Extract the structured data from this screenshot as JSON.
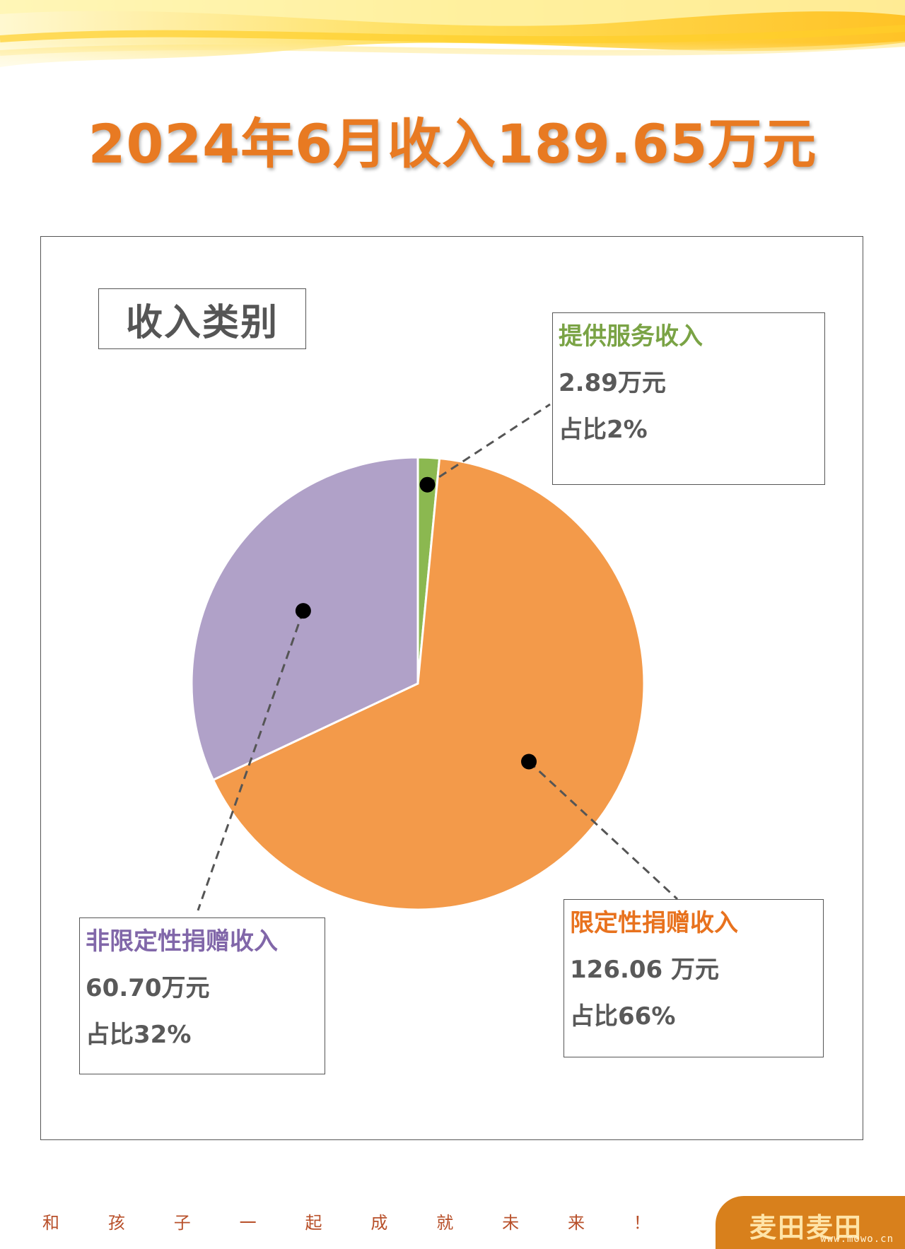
{
  "title": "2024年6月收入189.65万元",
  "category_label": "收入类别",
  "colors": {
    "title": "#e87a22",
    "service": "#8bb850",
    "restricted": "#f39a4a",
    "unrestricted": "#b0a1c8"
  },
  "chart_data": {
    "type": "pie",
    "title": "2024年6月收入189.65万元",
    "slices": [
      {
        "name": "提供服务收入",
        "value": 2.89,
        "amount_label": "2.89万元",
        "share_label": "占比2%"
      },
      {
        "name": "限定性捐赠收入",
        "value": 126.06,
        "amount_label": "126.06 万元",
        "share_label": "占比66%"
      },
      {
        "name": "非限定性捐赠收入",
        "value": 60.7,
        "amount_label": "60.70万元",
        "share_label": "占比32%"
      }
    ]
  },
  "footer": {
    "slogan": [
      "和",
      "孩",
      "子",
      "一",
      "起",
      "成",
      "就",
      "未",
      "来",
      "！"
    ],
    "logo_text": "麦田麦田",
    "logo_url": "www.mowo.cn"
  }
}
